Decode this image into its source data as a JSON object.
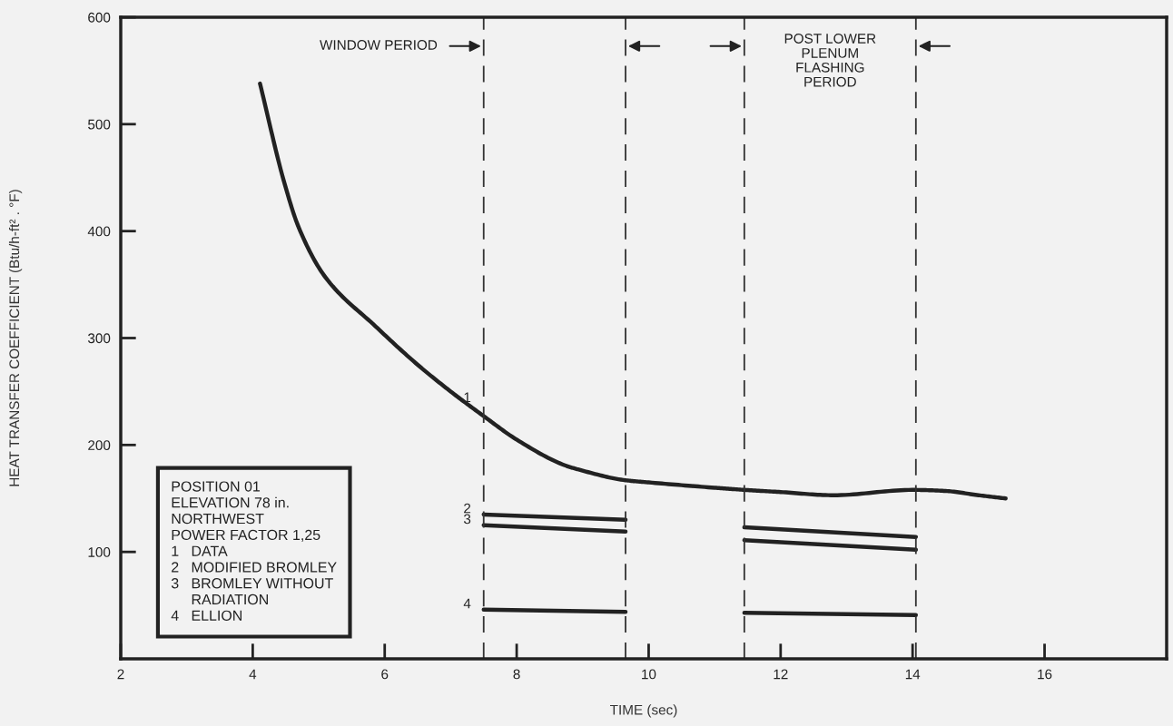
{
  "chart_data": {
    "type": "line",
    "xlabel": "TIME (sec)",
    "ylabel": "HEAT TRANSFER COEFFICIENT (Btu/h-ft² . °F)",
    "xlim": [
      2,
      17.85
    ],
    "ylim": [
      0,
      600
    ],
    "xticks": [
      2,
      4,
      6,
      8,
      10,
      12,
      14,
      16
    ],
    "yticks": [
      100,
      200,
      300,
      400,
      500,
      600
    ],
    "grid": false,
    "legend": false,
    "marker": "none",
    "line_style": "solid",
    "series": [
      {
        "name": "1",
        "color": "#222222",
        "x": [
          4.11,
          4.48,
          4.7,
          5.1,
          5.86,
          6.5,
          7.0,
          7.5,
          8.0,
          8.73,
          8.94,
          9.65,
          10.0,
          11.0,
          11.45,
          12.0,
          12.8,
          14.0,
          14.5,
          15.0,
          15.41
        ],
        "values": [
          538,
          445,
          403,
          357,
          311,
          275,
          250,
          227,
          205,
          181,
          177,
          167,
          165,
          160,
          158,
          156,
          153,
          158,
          157,
          153,
          150
        ]
      },
      {
        "name": "2",
        "color": "#222222",
        "x": [
          7.5,
          9.65,
          10.5,
          11.45,
          14.05
        ],
        "values": [
          135,
          130,
          null,
          123,
          114
        ]
      },
      {
        "name": "3",
        "color": "#222222",
        "x": [
          7.5,
          9.65,
          10.5,
          11.45,
          14.05
        ],
        "values": [
          125,
          119,
          null,
          111,
          102
        ]
      },
      {
        "name": "4",
        "color": "#222222",
        "x": [
          7.5,
          9.65,
          10.5,
          11.45,
          14.05
        ],
        "values": [
          46,
          44,
          null,
          43,
          41
        ]
      }
    ],
    "ref_lines": [
      {
        "axis": "x",
        "value": 7.5,
        "line_style": "dashed",
        "color": "#333333"
      },
      {
        "axis": "x",
        "value": 9.65,
        "line_style": "dashed",
        "color": "#333333"
      },
      {
        "axis": "x",
        "value": 11.45,
        "line_style": "dashed",
        "color": "#333333"
      },
      {
        "axis": "x",
        "value": 14.05,
        "line_style": "dashed",
        "color": "#333333"
      }
    ],
    "annotations": [
      "WINDOW PERIOD",
      "POST LOWER\nPLENUM\nFLASHING\nPERIOD",
      "POSITION 01\nELEVATION 78 in.\nNORTHWEST\nPOWER FACTOR 1,25\n1   DATA\n2   MODIFIED BROMLEY\n3   BROMLEY WITHOUT\n     RADIATION\n4   ELLION"
    ]
  }
}
